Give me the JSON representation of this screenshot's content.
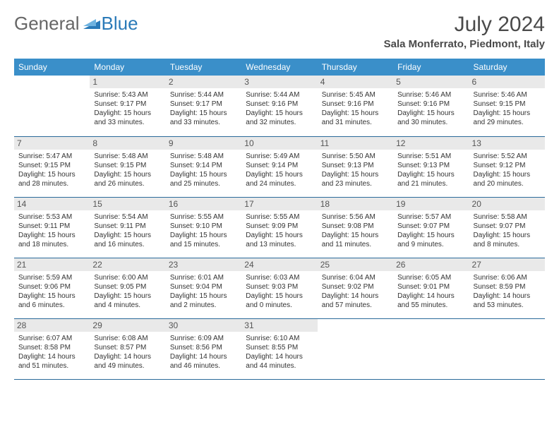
{
  "meta": {
    "month_title": "July 2024",
    "location": "Sala Monferrato, Piedmont, Italy",
    "logo": {
      "word1": "General",
      "word2": "Blue"
    }
  },
  "styles": {
    "header_bg": "#3a8fc9",
    "header_fg": "#ffffff",
    "daynum_bg": "#e9e9e9",
    "daynum_fg": "#555555",
    "border_color": "#2a6a9a",
    "body_text": "#333333",
    "title_color": "#4a4a4a",
    "logo_general_color": "#666666",
    "logo_blue_color": "#2a7ab8",
    "title_fontsize": 30,
    "location_fontsize": 15,
    "th_fontsize": 12,
    "daynum_fontsize": 12,
    "body_fontsize": 10
  },
  "weekdays": [
    "Sunday",
    "Monday",
    "Tuesday",
    "Wednesday",
    "Thursday",
    "Friday",
    "Saturday"
  ],
  "cells": [
    [
      {
        "day": "",
        "lines": []
      },
      {
        "day": "1",
        "lines": [
          "Sunrise: 5:43 AM",
          "Sunset: 9:17 PM",
          "Daylight: 15 hours",
          "and 33 minutes."
        ]
      },
      {
        "day": "2",
        "lines": [
          "Sunrise: 5:44 AM",
          "Sunset: 9:17 PM",
          "Daylight: 15 hours",
          "and 33 minutes."
        ]
      },
      {
        "day": "3",
        "lines": [
          "Sunrise: 5:44 AM",
          "Sunset: 9:16 PM",
          "Daylight: 15 hours",
          "and 32 minutes."
        ]
      },
      {
        "day": "4",
        "lines": [
          "Sunrise: 5:45 AM",
          "Sunset: 9:16 PM",
          "Daylight: 15 hours",
          "and 31 minutes."
        ]
      },
      {
        "day": "5",
        "lines": [
          "Sunrise: 5:46 AM",
          "Sunset: 9:16 PM",
          "Daylight: 15 hours",
          "and 30 minutes."
        ]
      },
      {
        "day": "6",
        "lines": [
          "Sunrise: 5:46 AM",
          "Sunset: 9:15 PM",
          "Daylight: 15 hours",
          "and 29 minutes."
        ]
      }
    ],
    [
      {
        "day": "7",
        "lines": [
          "Sunrise: 5:47 AM",
          "Sunset: 9:15 PM",
          "Daylight: 15 hours",
          "and 28 minutes."
        ]
      },
      {
        "day": "8",
        "lines": [
          "Sunrise: 5:48 AM",
          "Sunset: 9:15 PM",
          "Daylight: 15 hours",
          "and 26 minutes."
        ]
      },
      {
        "day": "9",
        "lines": [
          "Sunrise: 5:48 AM",
          "Sunset: 9:14 PM",
          "Daylight: 15 hours",
          "and 25 minutes."
        ]
      },
      {
        "day": "10",
        "lines": [
          "Sunrise: 5:49 AM",
          "Sunset: 9:14 PM",
          "Daylight: 15 hours",
          "and 24 minutes."
        ]
      },
      {
        "day": "11",
        "lines": [
          "Sunrise: 5:50 AM",
          "Sunset: 9:13 PM",
          "Daylight: 15 hours",
          "and 23 minutes."
        ]
      },
      {
        "day": "12",
        "lines": [
          "Sunrise: 5:51 AM",
          "Sunset: 9:13 PM",
          "Daylight: 15 hours",
          "and 21 minutes."
        ]
      },
      {
        "day": "13",
        "lines": [
          "Sunrise: 5:52 AM",
          "Sunset: 9:12 PM",
          "Daylight: 15 hours",
          "and 20 minutes."
        ]
      }
    ],
    [
      {
        "day": "14",
        "lines": [
          "Sunrise: 5:53 AM",
          "Sunset: 9:11 PM",
          "Daylight: 15 hours",
          "and 18 minutes."
        ]
      },
      {
        "day": "15",
        "lines": [
          "Sunrise: 5:54 AM",
          "Sunset: 9:11 PM",
          "Daylight: 15 hours",
          "and 16 minutes."
        ]
      },
      {
        "day": "16",
        "lines": [
          "Sunrise: 5:55 AM",
          "Sunset: 9:10 PM",
          "Daylight: 15 hours",
          "and 15 minutes."
        ]
      },
      {
        "day": "17",
        "lines": [
          "Sunrise: 5:55 AM",
          "Sunset: 9:09 PM",
          "Daylight: 15 hours",
          "and 13 minutes."
        ]
      },
      {
        "day": "18",
        "lines": [
          "Sunrise: 5:56 AM",
          "Sunset: 9:08 PM",
          "Daylight: 15 hours",
          "and 11 minutes."
        ]
      },
      {
        "day": "19",
        "lines": [
          "Sunrise: 5:57 AM",
          "Sunset: 9:07 PM",
          "Daylight: 15 hours",
          "and 9 minutes."
        ]
      },
      {
        "day": "20",
        "lines": [
          "Sunrise: 5:58 AM",
          "Sunset: 9:07 PM",
          "Daylight: 15 hours",
          "and 8 minutes."
        ]
      }
    ],
    [
      {
        "day": "21",
        "lines": [
          "Sunrise: 5:59 AM",
          "Sunset: 9:06 PM",
          "Daylight: 15 hours",
          "and 6 minutes."
        ]
      },
      {
        "day": "22",
        "lines": [
          "Sunrise: 6:00 AM",
          "Sunset: 9:05 PM",
          "Daylight: 15 hours",
          "and 4 minutes."
        ]
      },
      {
        "day": "23",
        "lines": [
          "Sunrise: 6:01 AM",
          "Sunset: 9:04 PM",
          "Daylight: 15 hours",
          "and 2 minutes."
        ]
      },
      {
        "day": "24",
        "lines": [
          "Sunrise: 6:03 AM",
          "Sunset: 9:03 PM",
          "Daylight: 15 hours",
          "and 0 minutes."
        ]
      },
      {
        "day": "25",
        "lines": [
          "Sunrise: 6:04 AM",
          "Sunset: 9:02 PM",
          "Daylight: 14 hours",
          "and 57 minutes."
        ]
      },
      {
        "day": "26",
        "lines": [
          "Sunrise: 6:05 AM",
          "Sunset: 9:01 PM",
          "Daylight: 14 hours",
          "and 55 minutes."
        ]
      },
      {
        "day": "27",
        "lines": [
          "Sunrise: 6:06 AM",
          "Sunset: 8:59 PM",
          "Daylight: 14 hours",
          "and 53 minutes."
        ]
      }
    ],
    [
      {
        "day": "28",
        "lines": [
          "Sunrise: 6:07 AM",
          "Sunset: 8:58 PM",
          "Daylight: 14 hours",
          "and 51 minutes."
        ]
      },
      {
        "day": "29",
        "lines": [
          "Sunrise: 6:08 AM",
          "Sunset: 8:57 PM",
          "Daylight: 14 hours",
          "and 49 minutes."
        ]
      },
      {
        "day": "30",
        "lines": [
          "Sunrise: 6:09 AM",
          "Sunset: 8:56 PM",
          "Daylight: 14 hours",
          "and 46 minutes."
        ]
      },
      {
        "day": "31",
        "lines": [
          "Sunrise: 6:10 AM",
          "Sunset: 8:55 PM",
          "Daylight: 14 hours",
          "and 44 minutes."
        ]
      },
      {
        "day": "",
        "lines": []
      },
      {
        "day": "",
        "lines": []
      },
      {
        "day": "",
        "lines": []
      }
    ]
  ]
}
